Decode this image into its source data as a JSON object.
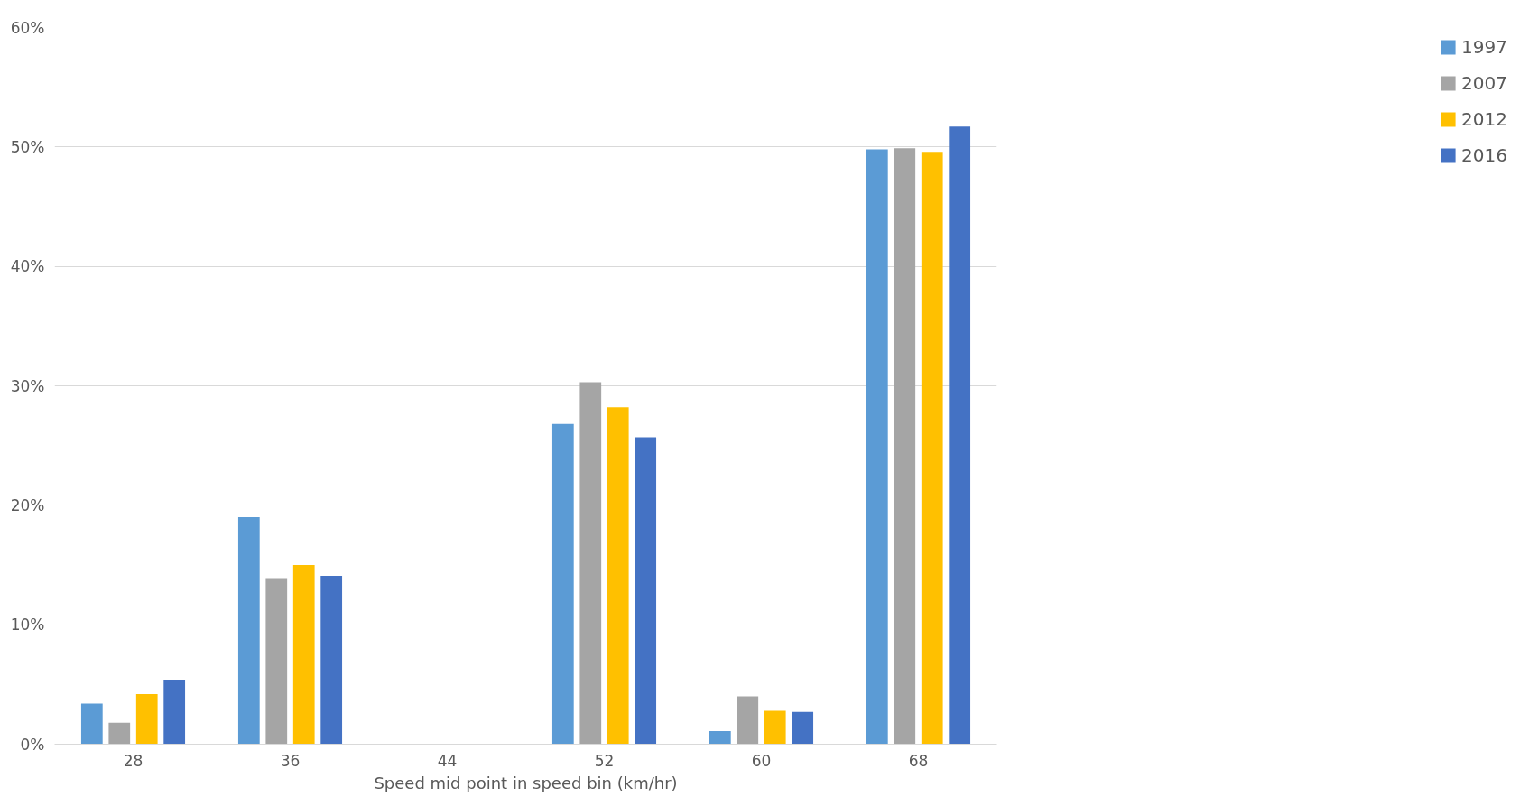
{
  "chart_data": {
    "type": "bar",
    "xlabel": "Speed mid point in speed bin (km/hr)",
    "categories": [
      "28",
      "36",
      "44",
      "52",
      "60",
      "68"
    ],
    "series": [
      {
        "name": "1997",
        "color": "#5b9bd5",
        "values": [
          3.4,
          19.0,
          0,
          26.8,
          1.1,
          49.8
        ]
      },
      {
        "name": "2007",
        "color": "#a5a5a5",
        "values": [
          1.8,
          13.9,
          0,
          30.3,
          4.0,
          49.9
        ]
      },
      {
        "name": "2012",
        "color": "#ffc000",
        "values": [
          4.2,
          15.0,
          0,
          28.2,
          2.8,
          49.6
        ]
      },
      {
        "name": "2016",
        "color": "#4472c4",
        "values": [
          5.4,
          14.1,
          0,
          25.7,
          2.7,
          51.7
        ]
      }
    ],
    "ylim": [
      0,
      60
    ],
    "yticks": [
      {
        "value": 0,
        "label": "0%"
      },
      {
        "value": 10,
        "label": "10%"
      },
      {
        "value": 20,
        "label": "20%"
      },
      {
        "value": 30,
        "label": "30%"
      },
      {
        "value": 40,
        "label": "40%"
      },
      {
        "value": 50,
        "label": "50%"
      },
      {
        "value": 60,
        "label": "60%"
      }
    ],
    "grid": "y",
    "legend": "right"
  }
}
